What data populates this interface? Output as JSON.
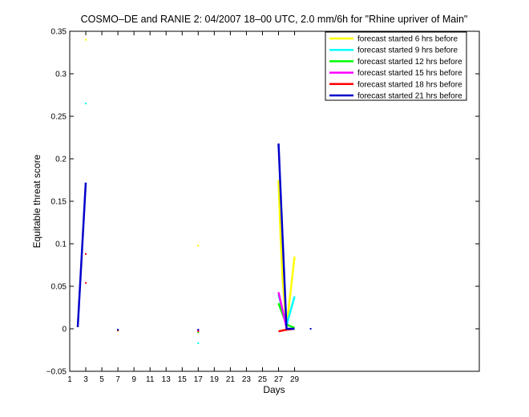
{
  "chart_data": {
    "type": "line",
    "title": "COSMO–DE and RANIE 2: 04/2007 18–00 UTC, 2.0 mm/6h for \"Rhine upriver of Main\"",
    "xlabel": "Days",
    "ylabel": "Equitable threat score",
    "xlim": [
      1,
      52
    ],
    "ylim": [
      -0.05,
      0.35
    ],
    "x_ticks": [
      1,
      3,
      5,
      7,
      9,
      11,
      13,
      15,
      17,
      19,
      21,
      23,
      25,
      27,
      29
    ],
    "x_tick_labels": [
      "1",
      "3",
      "5",
      "7",
      "9",
      "11",
      "13",
      "15",
      "17",
      "19",
      "21",
      "23",
      "25",
      "27",
      "29"
    ],
    "y_ticks": [
      -0.05,
      0,
      0.05,
      0.1,
      0.15,
      0.2,
      0.25,
      0.3,
      0.35
    ],
    "y_tick_labels": [
      "−0.05",
      "0",
      "0.05",
      "0.1",
      "0.15",
      "0.2",
      "0.25",
      "0.3",
      "0.35"
    ],
    "grid": false,
    "legend_position": "top-right",
    "series": [
      {
        "name": "forecast started 6 hrs before",
        "color": "#ffff00",
        "segments": [
          [
            [
              3,
              0.34
            ]
          ],
          [
            [
              7,
              -0.001
            ]
          ],
          [
            [
              17,
              0.098
            ]
          ],
          [
            [
              27,
              0.175
            ],
            [
              27.25,
              0.11
            ],
            [
              27.5,
              0.06
            ],
            [
              28,
              0.002
            ],
            [
              29,
              0.085
            ]
          ]
        ]
      },
      {
        "name": "forecast started 9 hrs before",
        "color": "#00ffff",
        "segments": [
          [
            [
              3,
              0.265
            ]
          ],
          [
            [
              7,
              -0.001
            ]
          ],
          [
            [
              17,
              -0.017
            ]
          ],
          [
            [
              27,
              0.04
            ],
            [
              28,
              0.004
            ],
            [
              29,
              0.038
            ]
          ]
        ]
      },
      {
        "name": "forecast started 12 hrs before",
        "color": "#00ff00",
        "segments": [
          [
            [
              7,
              -0.002
            ]
          ],
          [
            [
              17,
              -0.004
            ]
          ],
          [
            [
              27,
              0.03
            ],
            [
              28,
              0.005
            ],
            [
              29,
              0.001
            ]
          ]
        ]
      },
      {
        "name": "forecast started 15 hrs before",
        "color": "#ff00ff",
        "segments": [
          [
            [
              17,
              -0.002
            ]
          ],
          [
            [
              27,
              0.043
            ],
            [
              28,
              0.001
            ]
          ]
        ]
      },
      {
        "name": "forecast started 18 hrs before",
        "color": "#ff0000",
        "segments": [
          [
            [
              3,
              0.088
            ]
          ],
          [
            [
              3,
              0.054
            ]
          ],
          [
            [
              7,
              -0.002
            ]
          ],
          [
            [
              17,
              -0.003
            ]
          ],
          [
            [
              27,
              -0.003
            ],
            [
              28,
              -0.001
            ],
            [
              29,
              0.0
            ]
          ]
        ]
      },
      {
        "name": "forecast started 21 hrs before",
        "color": "#0000cc",
        "segments": [
          [
            [
              2,
              0.002
            ],
            [
              3,
              0.172
            ]
          ],
          [
            [
              7,
              -0.001
            ]
          ],
          [
            [
              17,
              -0.001
            ]
          ],
          [
            [
              27,
              0.218
            ],
            [
              28,
              0.0
            ],
            [
              29,
              0.0
            ]
          ],
          [
            [
              31,
              0.0
            ]
          ]
        ]
      }
    ]
  }
}
